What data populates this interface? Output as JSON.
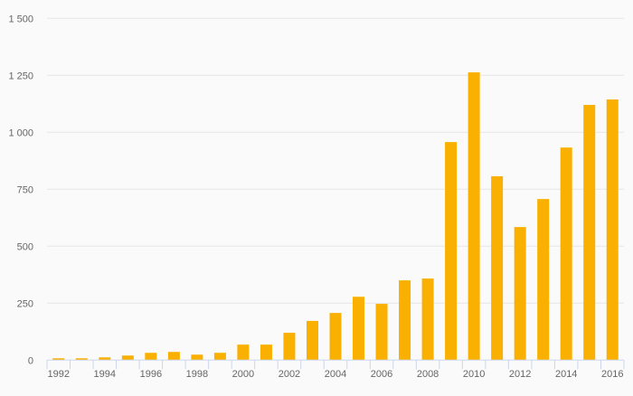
{
  "chart_data": {
    "type": "bar",
    "title": "",
    "xlabel": "",
    "ylabel": "",
    "ylim": [
      0,
      1500
    ],
    "grid": true,
    "y_ticks": [
      {
        "value": 0,
        "label": "0"
      },
      {
        "value": 250,
        "label": "250"
      },
      {
        "value": 500,
        "label": "500"
      },
      {
        "value": 750,
        "label": "750"
      },
      {
        "value": 1000,
        "label": "1 000"
      },
      {
        "value": 1250,
        "label": "1 250"
      },
      {
        "value": 1500,
        "label": "1 500"
      }
    ],
    "categories": [
      "1992",
      "1993",
      "1994",
      "1995",
      "1996",
      "1997",
      "1998",
      "1999",
      "2000",
      "2001",
      "2002",
      "2003",
      "2004",
      "2005",
      "2006",
      "2007",
      "2008",
      "2009",
      "2010",
      "2011",
      "2012",
      "2013",
      "2014",
      "2015",
      "2016"
    ],
    "x_tick_labels": [
      "1992",
      "1994",
      "1996",
      "1998",
      "2000",
      "2002",
      "2004",
      "2006",
      "2008",
      "2010",
      "2012",
      "2014",
      "2016"
    ],
    "values": [
      8,
      8,
      12,
      20,
      32,
      36,
      24,
      32,
      68,
      68,
      120,
      172,
      207,
      278,
      247,
      350,
      358,
      957,
      1263,
      807,
      584,
      707,
      933,
      1120,
      1144
    ],
    "bar_color": "#f9b000"
  }
}
